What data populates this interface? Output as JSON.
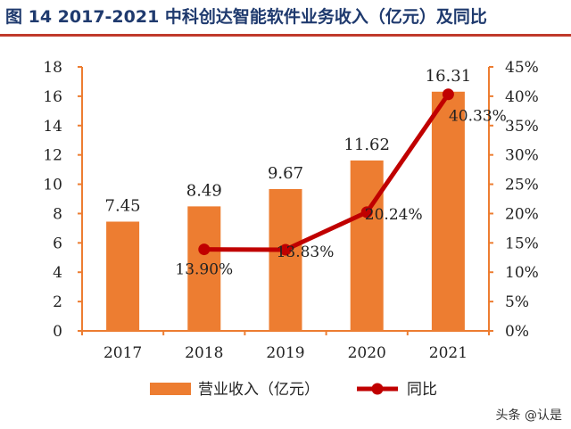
{
  "figure_title": "图  14 2017-2021 中科创达智能软件业务收入（亿元）及同比",
  "watermark": "头条 @认是",
  "colors": {
    "bar": "#ed7d31",
    "line": "#c00000",
    "axis": "#ed7d31",
    "title": "#1f3a6e"
  },
  "chart_data": {
    "type": "bar",
    "categories": [
      "2017",
      "2018",
      "2019",
      "2020",
      "2021"
    ],
    "series": [
      {
        "name": "营业收入（亿元）",
        "type": "bar",
        "axis": "left",
        "values": [
          7.45,
          8.49,
          9.67,
          11.62,
          16.31
        ],
        "labels": [
          "7.45",
          "8.49",
          "9.67",
          "11.62",
          "16.31"
        ]
      },
      {
        "name": "同比",
        "type": "line",
        "axis": "right",
        "values": [
          null,
          13.9,
          13.83,
          20.24,
          40.33
        ],
        "labels": [
          "",
          "13.90%",
          "13.83%",
          "20.24%",
          "40.33%"
        ]
      }
    ],
    "y_left": {
      "min": 0,
      "max": 18,
      "ticks": [
        "0",
        "2",
        "4",
        "6",
        "8",
        "10",
        "12",
        "14",
        "16",
        "18"
      ]
    },
    "y_right": {
      "min": 0,
      "max": 45,
      "ticks": [
        "0%",
        "5%",
        "10%",
        "15%",
        "20%",
        "25%",
        "30%",
        "35%",
        "40%",
        "45%"
      ]
    },
    "legend_position": "bottom",
    "grid": false
  }
}
